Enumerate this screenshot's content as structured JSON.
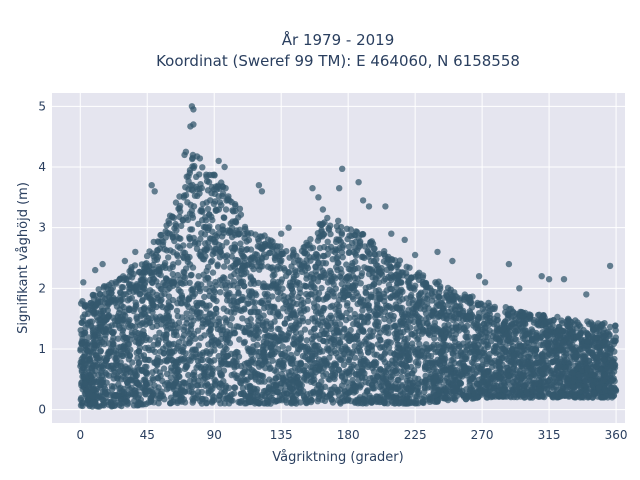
{
  "chart_data": {
    "type": "scatter",
    "title_line1": "År 1979 - 2019",
    "title_line2": "Koordinat (Sweref 99 TM): E 464060, N 6158558",
    "xlabel": "Vågriktning (grader)",
    "ylabel": "Signifikant våghöjd (m)",
    "xlim": [
      -19,
      366
    ],
    "ylim": [
      -0.22,
      5.22
    ],
    "xticks": [
      0,
      45,
      90,
      135,
      180,
      225,
      270,
      315,
      360
    ],
    "yticks": [
      0,
      1,
      2,
      3,
      4,
      5
    ],
    "grid": true,
    "legend": "none",
    "colors": {
      "marker": "#34586e",
      "plot_bg": "#e5e5ef",
      "grid": "#ffffff"
    },
    "envelope": {
      "x": [
        0,
        20,
        45,
        60,
        70,
        75,
        80,
        90,
        100,
        110,
        120,
        135,
        145,
        155,
        165,
        175,
        180,
        190,
        200,
        225,
        250,
        270,
        300,
        330,
        360
      ],
      "upper_hmax": [
        1.8,
        2.1,
        2.6,
        3.2,
        3.7,
        4.3,
        4.2,
        3.9,
        3.6,
        3.2,
        2.9,
        2.8,
        2.6,
        2.9,
        3.2,
        3.1,
        3.0,
        2.9,
        2.7,
        2.3,
        2.0,
        1.8,
        1.6,
        1.5,
        1.4
      ],
      "lower_hmin": [
        0.05,
        0.05,
        0.08,
        0.1,
        0.1,
        0.1,
        0.1,
        0.1,
        0.1,
        0.1,
        0.1,
        0.1,
        0.1,
        0.1,
        0.1,
        0.1,
        0.1,
        0.1,
        0.1,
        0.1,
        0.15,
        0.2,
        0.2,
        0.2,
        0.2
      ]
    },
    "outliers": [
      {
        "x": 75,
        "y": 5.0
      },
      {
        "x": 76,
        "y": 4.95
      },
      {
        "x": 74,
        "y": 4.67
      },
      {
        "x": 76,
        "y": 4.7
      },
      {
        "x": 71,
        "y": 4.25
      },
      {
        "x": 70,
        "y": 4.2
      },
      {
        "x": 93,
        "y": 4.1
      },
      {
        "x": 97,
        "y": 4.0
      },
      {
        "x": 48,
        "y": 3.7
      },
      {
        "x": 50,
        "y": 3.6
      },
      {
        "x": 120,
        "y": 3.7
      },
      {
        "x": 122,
        "y": 3.6
      },
      {
        "x": 156,
        "y": 3.65
      },
      {
        "x": 174,
        "y": 3.65
      },
      {
        "x": 176,
        "y": 3.97
      },
      {
        "x": 187,
        "y": 3.75
      },
      {
        "x": 190,
        "y": 3.45
      },
      {
        "x": 194,
        "y": 3.35
      },
      {
        "x": 205,
        "y": 3.35
      },
      {
        "x": 209,
        "y": 2.9
      },
      {
        "x": 218,
        "y": 2.8
      },
      {
        "x": 225,
        "y": 2.55
      },
      {
        "x": 240,
        "y": 2.6
      },
      {
        "x": 250,
        "y": 2.45
      },
      {
        "x": 268,
        "y": 2.2
      },
      {
        "x": 272,
        "y": 2.1
      },
      {
        "x": 288,
        "y": 2.4
      },
      {
        "x": 295,
        "y": 2.0
      },
      {
        "x": 310,
        "y": 2.2
      },
      {
        "x": 315,
        "y": 2.15
      },
      {
        "x": 325,
        "y": 2.15
      },
      {
        "x": 340,
        "y": 1.9
      },
      {
        "x": 356,
        "y": 2.37
      },
      {
        "x": 10,
        "y": 2.3
      },
      {
        "x": 15,
        "y": 2.4
      },
      {
        "x": 2,
        "y": 2.1
      },
      {
        "x": 30,
        "y": 2.45
      },
      {
        "x": 37,
        "y": 2.6
      },
      {
        "x": 135,
        "y": 2.9
      },
      {
        "x": 140,
        "y": 3.0
      },
      {
        "x": 160,
        "y": 3.5
      },
      {
        "x": 163,
        "y": 3.3
      }
    ]
  }
}
